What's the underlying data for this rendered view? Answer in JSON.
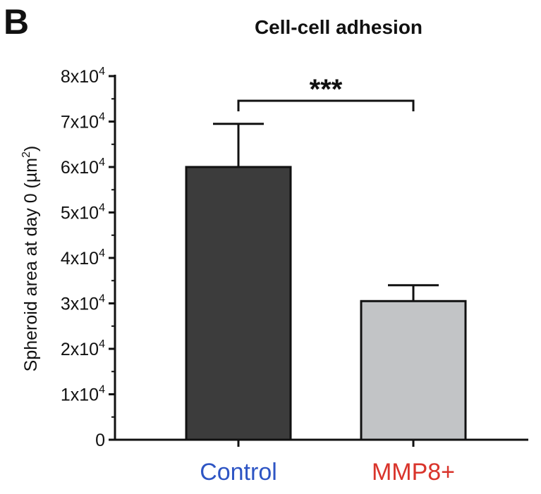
{
  "panel_label": "B",
  "chart_data": {
    "type": "bar",
    "title": "Cell-cell adhesion",
    "ylabel_main": "Spheroid area at day 0 (µm",
    "ylabel_sup": "2",
    "ylabel_close": ")",
    "xlabel": "",
    "ylim": [
      0,
      80000
    ],
    "yticks": [
      {
        "value": 0,
        "base": "0",
        "exp": ""
      },
      {
        "value": 10000,
        "base": "1x10",
        "exp": "4"
      },
      {
        "value": 20000,
        "base": "2x10",
        "exp": "4"
      },
      {
        "value": 30000,
        "base": "3x10",
        "exp": "4"
      },
      {
        "value": 40000,
        "base": "4x10",
        "exp": "4"
      },
      {
        "value": 50000,
        "base": "5x10",
        "exp": "4"
      },
      {
        "value": 60000,
        "base": "6x10",
        "exp": "4"
      },
      {
        "value": 70000,
        "base": "7x10",
        "exp": "4"
      },
      {
        "value": 80000,
        "base": "8x10",
        "exp": "4"
      }
    ],
    "categories": [
      "Control",
      "MMP8+"
    ],
    "category_colors": [
      "#2e55c4",
      "#d9342b"
    ],
    "values": [
      60000,
      30500
    ],
    "error_upper": [
      9500,
      3500
    ],
    "bar_colors": [
      "#3c3c3c",
      "#c2c4c6"
    ],
    "significance": {
      "from": 0,
      "to": 1,
      "label": "***"
    }
  }
}
